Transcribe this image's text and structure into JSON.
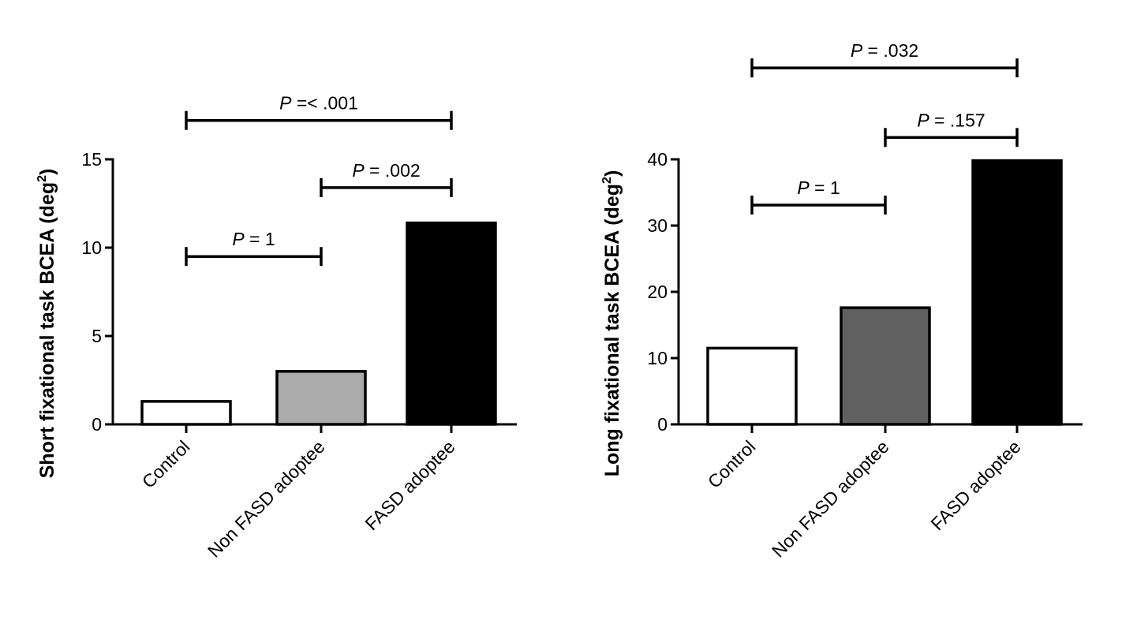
{
  "chart_data": [
    {
      "type": "bar",
      "ylabel": "Short fixational task BCEA",
      "ylabel_unit": "(deg",
      "ylabel_unit_sup": "2",
      "ylabel_unit_close": ")",
      "categories": [
        "Control",
        "Non FASD adoptee",
        "FASD adoptee"
      ],
      "values": [
        1.3,
        3.0,
        11.4
      ],
      "bar_colors": [
        "#ffffff",
        "#ababab",
        "#000000"
      ],
      "ylim": [
        0,
        15
      ],
      "yticks": [
        0,
        5,
        10,
        15
      ],
      "ytick_labels": [
        "0",
        "5",
        "10",
        "15"
      ],
      "grid": false,
      "comparisons": [
        {
          "from": 0,
          "to": 2,
          "y": 17.2,
          "p_label": "P",
          "p_value": "=< .001"
        },
        {
          "from": 1,
          "to": 2,
          "y": 13.4,
          "p_label": "P",
          "p_value": "= .002"
        },
        {
          "from": 0,
          "to": 1,
          "y": 9.5,
          "p_label": "P",
          "p_value": "= 1"
        }
      ]
    },
    {
      "type": "bar",
      "ylabel": "Long fixational task BCEA",
      "ylabel_unit": "(deg",
      "ylabel_unit_sup": "2",
      "ylabel_unit_close": ")",
      "categories": [
        "Control",
        "Non FASD adoptee",
        "FASD adoptee"
      ],
      "values": [
        11.5,
        17.6,
        39.8
      ],
      "bar_colors": [
        "#ffffff",
        "#606060",
        "#000000"
      ],
      "ylim": [
        0,
        40
      ],
      "yticks": [
        0,
        10,
        20,
        30,
        40
      ],
      "ytick_labels": [
        "0",
        "10",
        "20",
        "30",
        "40"
      ],
      "grid": false,
      "comparisons": [
        {
          "from": 0,
          "to": 2,
          "y": 53.8,
          "p_label": "P",
          "p_value": "= .032"
        },
        {
          "from": 1,
          "to": 2,
          "y": 43.3,
          "p_label": "P",
          "p_value": "= .157"
        },
        {
          "from": 0,
          "to": 1,
          "y": 33.1,
          "p_label": "P",
          "p_value": "= 1"
        }
      ]
    }
  ]
}
